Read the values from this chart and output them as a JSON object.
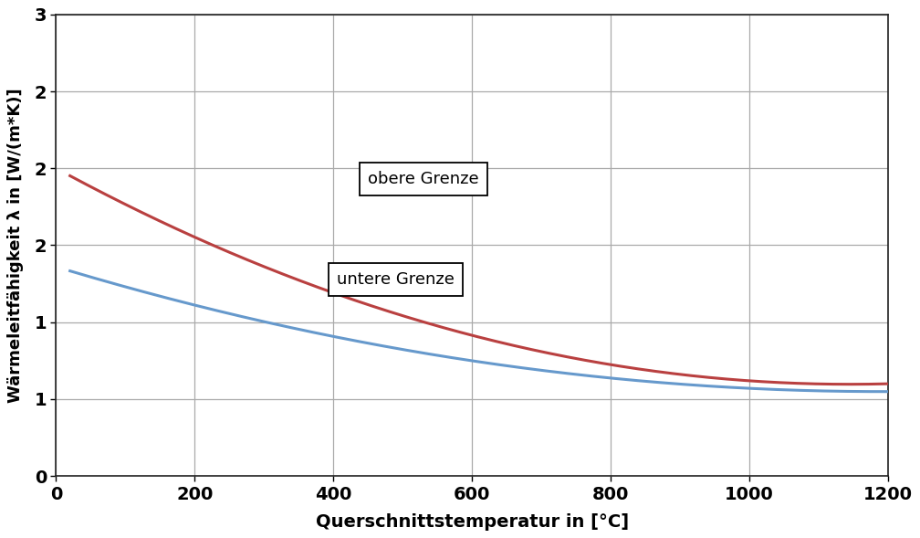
{
  "xlabel": "Querschnittstemperatur in [°C]",
  "ylabel": "Wärmeleitfähigkeit λ in [W/(m*K)]",
  "xlim": [
    0,
    1200
  ],
  "ylim": [
    0,
    3
  ],
  "xticks": [
    0,
    200,
    400,
    600,
    800,
    1000,
    1200
  ],
  "yticks": [
    0,
    0.5,
    1.0,
    1.5,
    2.0,
    2.5,
    3.0
  ],
  "ytick_labels": [
    "0",
    "1",
    "1",
    "2",
    "2",
    "2",
    "3"
  ],
  "color_upper": "#B94040",
  "color_lower": "#6699CC",
  "label_upper": "obere Grenze",
  "label_lower": "untere Grenze",
  "ann_upper_x": 530,
  "ann_upper_y": 1.93,
  "ann_lower_x": 490,
  "ann_lower_y": 1.28,
  "background_color": "#ffffff",
  "grid_color": "#AAAAAA",
  "linewidth": 2.2,
  "upper_a0": 2.0,
  "upper_a1": -0.2451,
  "upper_a2": 0.0107,
  "lower_a0": 1.36,
  "lower_a1": -0.136,
  "lower_a2": 0.0057
}
